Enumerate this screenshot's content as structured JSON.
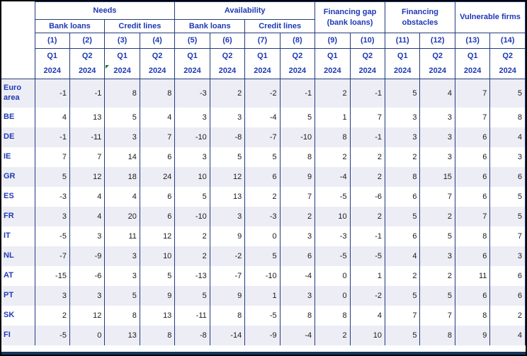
{
  "chart_data": {
    "type": "table",
    "col_groups": [
      {
        "label": "Needs",
        "subgroups": [
          "Bank loans",
          "Credit lines"
        ]
      },
      {
        "label": "Availability",
        "subgroups": [
          "Bank loans",
          "Credit lines"
        ]
      },
      {
        "label": "Financing gap (bank loans)"
      },
      {
        "label": "Financing obstacles"
      },
      {
        "label": "Vulnerable firms"
      }
    ],
    "columns": [
      {
        "num": "(1)",
        "quarter": "Q1",
        "year": "2024"
      },
      {
        "num": "(2)",
        "quarter": "Q2",
        "year": "2024"
      },
      {
        "num": "(3)",
        "quarter": "Q1",
        "year": "2024"
      },
      {
        "num": "(4)",
        "quarter": "Q2",
        "year": "2024"
      },
      {
        "num": "(5)",
        "quarter": "Q1",
        "year": "2024"
      },
      {
        "num": "(6)",
        "quarter": "Q2",
        "year": "2024"
      },
      {
        "num": "(7)",
        "quarter": "Q1",
        "year": "2024"
      },
      {
        "num": "(8)",
        "quarter": "Q2",
        "year": "2024"
      },
      {
        "num": "(9)",
        "quarter": "Q1",
        "year": "2024"
      },
      {
        "num": "(10)",
        "quarter": "Q2",
        "year": "2024"
      },
      {
        "num": "(11)",
        "quarter": "Q1",
        "year": "2024"
      },
      {
        "num": "(12)",
        "quarter": "Q2",
        "year": "2024"
      },
      {
        "num": "(13)",
        "quarter": "Q1",
        "year": "2024"
      },
      {
        "num": "(14)",
        "quarter": "Q2",
        "year": "2024"
      }
    ],
    "rows": [
      {
        "label": "Euro area",
        "values": [
          -1,
          -1,
          8,
          8,
          -3,
          2,
          -2,
          -1,
          2,
          -1,
          5,
          4,
          7,
          5
        ]
      },
      {
        "label": "BE",
        "values": [
          4,
          13,
          5,
          4,
          3,
          3,
          -4,
          5,
          1,
          7,
          3,
          3,
          7,
          8
        ]
      },
      {
        "label": "DE",
        "values": [
          -1,
          -11,
          3,
          7,
          -10,
          -8,
          -7,
          -10,
          8,
          -1,
          3,
          3,
          6,
          4
        ]
      },
      {
        "label": "IE",
        "values": [
          7,
          7,
          14,
          6,
          3,
          5,
          5,
          8,
          2,
          2,
          2,
          3,
          6,
          3
        ]
      },
      {
        "label": "GR",
        "values": [
          5,
          12,
          18,
          24,
          10,
          12,
          6,
          9,
          -4,
          2,
          8,
          15,
          6,
          6
        ]
      },
      {
        "label": "ES",
        "values": [
          -3,
          4,
          4,
          6,
          5,
          13,
          2,
          7,
          -5,
          -6,
          6,
          7,
          6,
          5
        ]
      },
      {
        "label": "FR",
        "values": [
          3,
          4,
          20,
          6,
          -10,
          3,
          -3,
          2,
          10,
          2,
          5,
          2,
          7,
          5
        ]
      },
      {
        "label": "IT",
        "values": [
          -5,
          3,
          11,
          12,
          2,
          9,
          0,
          3,
          -3,
          -1,
          6,
          5,
          8,
          7
        ]
      },
      {
        "label": "NL",
        "values": [
          -7,
          -9,
          3,
          10,
          2,
          -2,
          5,
          6,
          -5,
          -5,
          4,
          3,
          6,
          3
        ]
      },
      {
        "label": "AT",
        "values": [
          -15,
          -6,
          3,
          5,
          -13,
          -7,
          -10,
          -4,
          0,
          1,
          2,
          2,
          11,
          6
        ]
      },
      {
        "label": "PT",
        "values": [
          3,
          3,
          5,
          9,
          5,
          9,
          1,
          3,
          0,
          -2,
          5,
          5,
          6,
          6
        ]
      },
      {
        "label": "SK",
        "values": [
          2,
          12,
          8,
          13,
          -11,
          8,
          -5,
          8,
          8,
          4,
          7,
          7,
          8,
          2
        ]
      },
      {
        "label": "FI",
        "values": [
          -5,
          0,
          13,
          8,
          -8,
          -14,
          -9,
          -4,
          2,
          10,
          5,
          8,
          9,
          4
        ]
      }
    ],
    "marker": {
      "icon": "green-corner-marker",
      "column_num": "(3)",
      "column_index": 2,
      "row": "2024"
    }
  },
  "colors": {
    "blue": "#1d39b5",
    "border": "#223c7e",
    "stripe": "#ededf5",
    "valtext": "#1a1a1a",
    "navybar": "#17375e",
    "green": "#1b7a1b"
  }
}
